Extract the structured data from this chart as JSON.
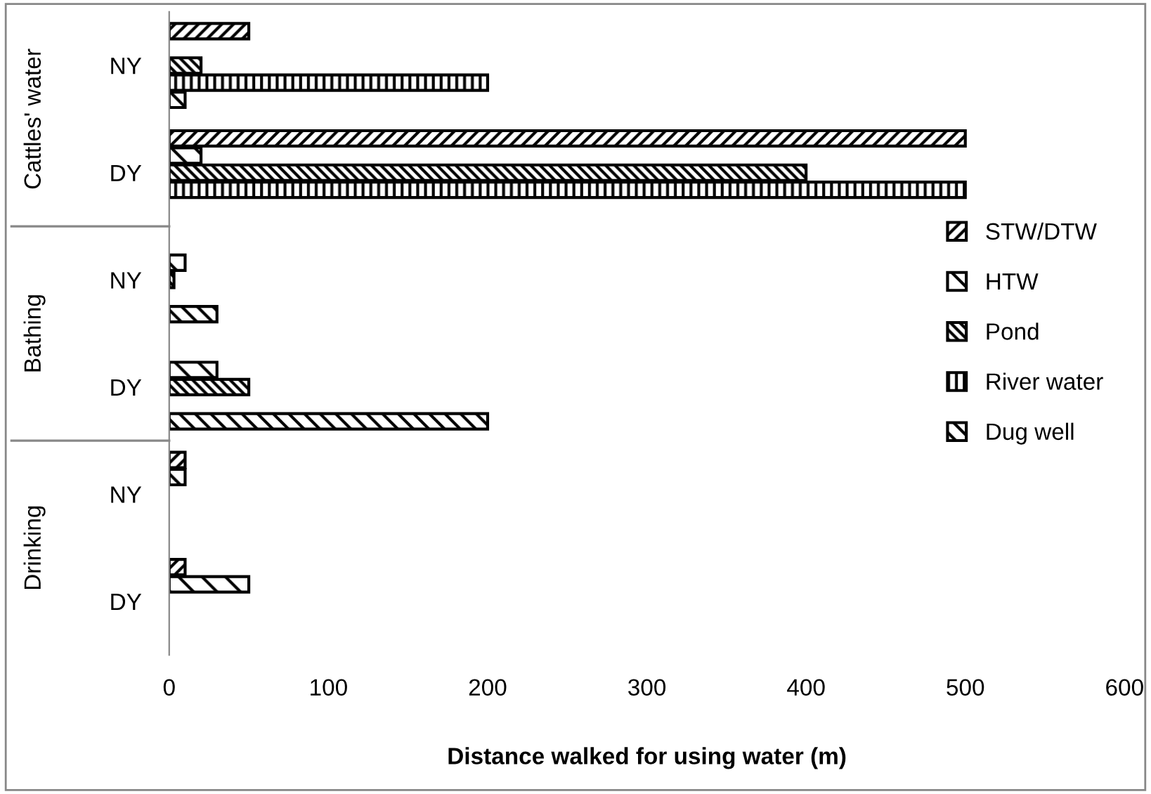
{
  "chart_data": {
    "type": "bar",
    "orientation": "horizontal",
    "xlabel": "Distance walked for using water (m)",
    "categories": [
      "NY",
      "DY",
      "NY",
      "DY",
      "NY",
      "DY"
    ],
    "annotations": [
      "Cattles' water",
      "Bathing",
      "Drinking"
    ],
    "series": [
      {
        "name": "STW/DTW",
        "color": "#000000",
        "values": [
          50,
          500,
          null,
          null,
          10,
          10
        ]
      },
      {
        "name": "HTW",
        "color": "#000000",
        "values": [
          null,
          20,
          10,
          30,
          10,
          50
        ]
      },
      {
        "name": "Pond",
        "color": "#000000",
        "values": [
          20,
          400,
          3,
          50,
          null,
          null
        ]
      },
      {
        "name": "River water",
        "color": "#000000",
        "values": [
          200,
          500,
          null,
          null,
          null,
          null
        ]
      },
      {
        "name": "Dug well",
        "color": "#000000",
        "values": [
          10,
          null,
          30,
          200,
          null,
          null
        ]
      }
    ],
    "xlim": [
      0,
      600
    ],
    "xticks": [
      0,
      100,
      200,
      300,
      400,
      500,
      600
    ],
    "grid": false,
    "legend": "right"
  }
}
